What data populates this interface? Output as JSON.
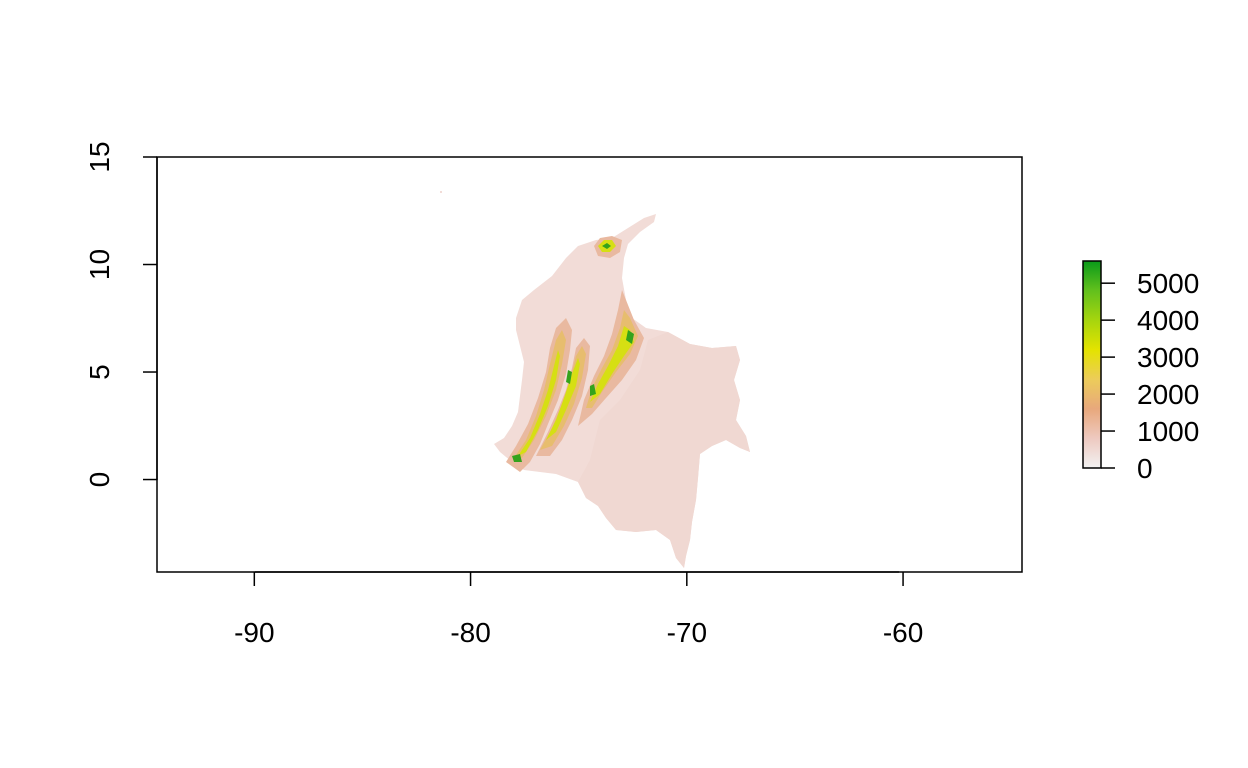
{
  "chart_data": {
    "type": "heatmap",
    "subject": "raster map",
    "title": "",
    "xlabel": "",
    "ylabel": "",
    "xlim": [
      -94.5,
      -54.5
    ],
    "ylim": [
      -4.3,
      15
    ],
    "x_ticks": [
      -90,
      -80,
      -70,
      -60
    ],
    "x_tick_labels": [
      "-90",
      "-80",
      "-70",
      "-60"
    ],
    "y_ticks": [
      0,
      5,
      10,
      15
    ],
    "y_tick_labels": [
      "0",
      "5",
      "10",
      "15"
    ],
    "legend": {
      "placement": "right",
      "min": 0,
      "max": 5600,
      "ticks": [
        0,
        1000,
        2000,
        3000,
        4000,
        5000
      ],
      "tick_labels": [
        "0",
        "1000",
        "2000",
        "3000",
        "4000",
        "5000"
      ],
      "colors": [
        "#f2f2f2",
        "#eec9c0",
        "#e8a87c",
        "#eccc5a",
        "#e4e300",
        "#a6d50e",
        "#62c01d",
        "#0a9a1a"
      ]
    },
    "colors": {
      "lowland": "#f2dcd7",
      "lowland_east": "#f0d8d2",
      "foothill": "#e9b9a0",
      "upland": "#e7bd6e",
      "high": "#d6df13",
      "peak": "#34a31c"
    }
  }
}
